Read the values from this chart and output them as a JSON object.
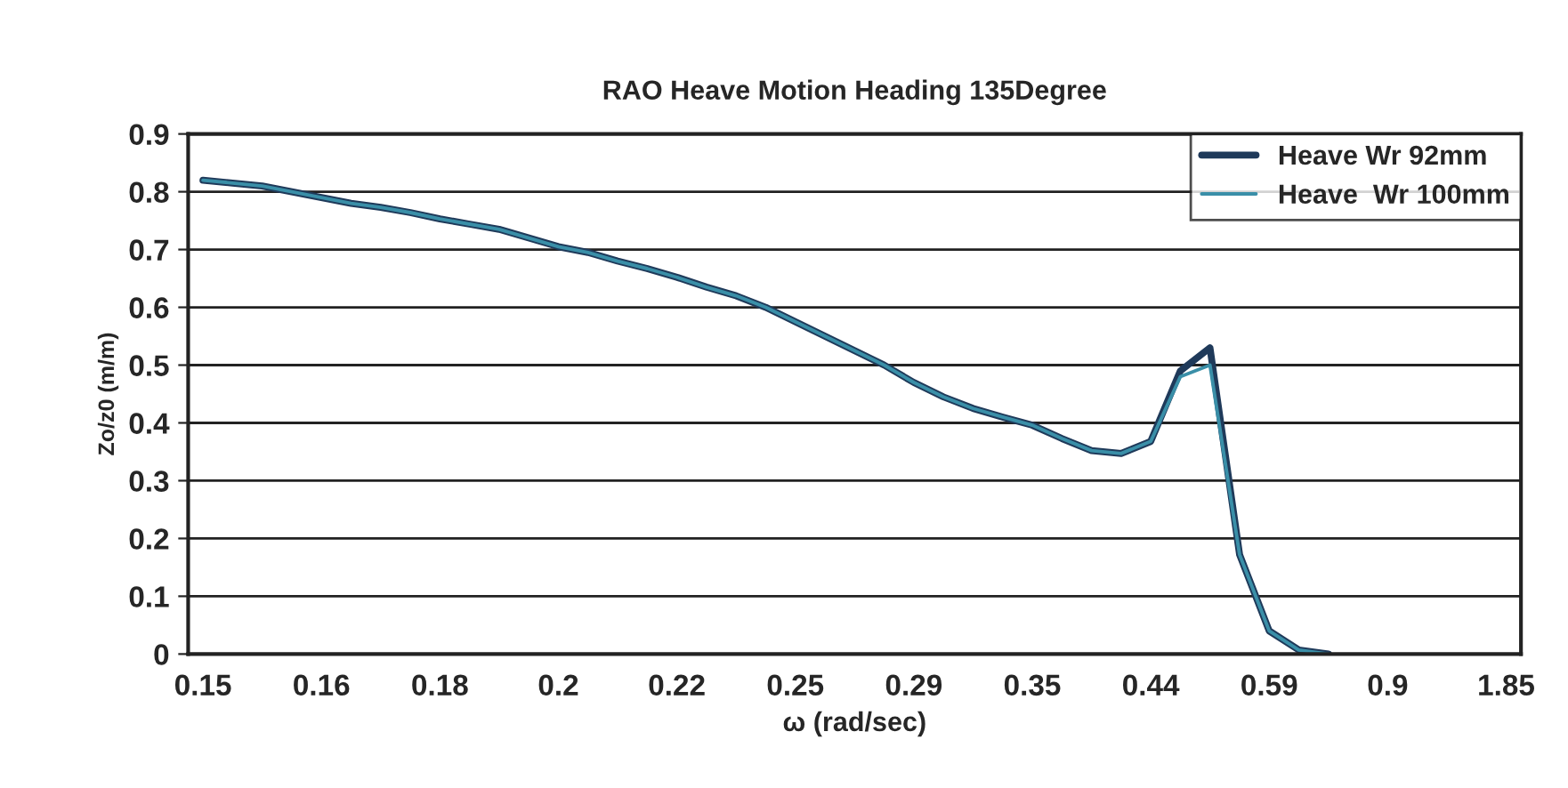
{
  "chart_data": {
    "type": "line",
    "title": "RAO Heave Motion Heading 135Degree",
    "xlabel": "ω (rad/sec)",
    "ylabel": "Zo/z0 (m/m)",
    "categories": [
      "0.15",
      null,
      null,
      null,
      "0.16",
      null,
      null,
      null,
      "0.18",
      null,
      null,
      null,
      "0.2",
      null,
      null,
      null,
      "0.22",
      null,
      null,
      null,
      "0.25",
      null,
      null,
      null,
      "0.29",
      null,
      null,
      null,
      "0.35",
      null,
      null,
      null,
      "0.44",
      null,
      null,
      null,
      "0.59",
      null,
      null,
      null,
      "0.9",
      null,
      null,
      null,
      "1.85"
    ],
    "series": [
      {
        "name": "Heave Wr 92mm",
        "color": "#1f3a5a",
        "values": [
          0.82,
          0.815,
          0.81,
          0.8,
          0.79,
          0.78,
          0.773,
          0.764,
          0.753,
          0.744,
          0.735,
          0.72,
          0.705,
          0.695,
          0.68,
          0.667,
          0.652,
          0.635,
          0.62,
          0.6,
          0.575,
          0.55,
          0.525,
          0.5,
          0.47,
          0.445,
          0.425,
          0.41,
          0.396,
          0.373,
          0.352,
          0.347,
          0.368,
          0.49,
          0.53,
          0.172,
          0.04,
          0.007,
          0.0,
          null,
          null,
          null,
          null,
          null,
          null
        ]
      },
      {
        "name": "Heave  Wr 100mm",
        "color": "#3a8fa8",
        "values": [
          0.82,
          0.815,
          0.81,
          0.8,
          0.79,
          0.78,
          0.773,
          0.764,
          0.753,
          0.744,
          0.735,
          0.72,
          0.705,
          0.695,
          0.68,
          0.667,
          0.652,
          0.635,
          0.62,
          0.6,
          0.575,
          0.55,
          0.525,
          0.5,
          0.47,
          0.445,
          0.425,
          0.41,
          0.396,
          0.373,
          0.352,
          0.347,
          0.368,
          0.48,
          0.5,
          0.172,
          0.04,
          0.007,
          0.0,
          null,
          null,
          null,
          null,
          null,
          null
        ]
      }
    ],
    "ylim": [
      0,
      0.9
    ],
    "yticks": [
      0,
      0.1,
      0.2,
      0.3,
      0.4,
      0.5,
      0.6,
      0.7,
      0.8,
      0.9
    ],
    "grid": "y",
    "legend": "top right",
    "marker": "none",
    "line_style": "solid"
  }
}
